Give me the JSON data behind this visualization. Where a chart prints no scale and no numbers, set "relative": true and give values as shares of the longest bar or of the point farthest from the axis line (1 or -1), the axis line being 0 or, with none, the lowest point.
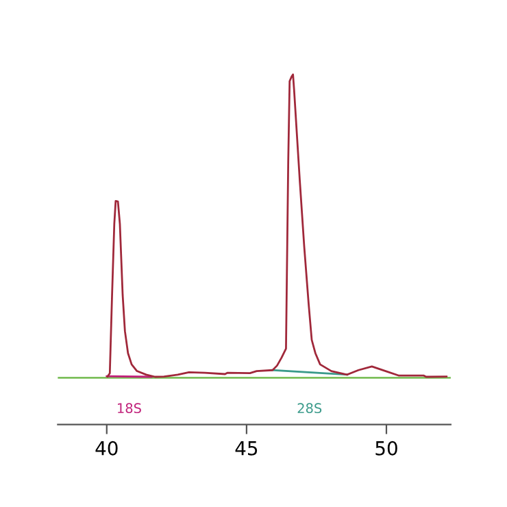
{
  "chart_data": {
    "type": "line",
    "relative": true,
    "xlim": [
      38.25,
      52.3
    ],
    "xticks": [
      40,
      45,
      50
    ],
    "tick_labels": "x",
    "grid": false,
    "legend": false,
    "marker": "none",
    "line_style": "solid",
    "series": [
      {
        "color": "#7cbf5a",
        "x": [
          38.25,
          52.3
        ],
        "values": [
          0,
          0
        ]
      },
      {
        "name": "18S",
        "color": "#c0207a",
        "x": [
          40.0,
          41.6
        ],
        "values": [
          0.005,
          0.003
        ]
      },
      {
        "name": "28S",
        "color": "#3a9a8a",
        "x": [
          45.9,
          48.6
        ],
        "values": [
          0.025,
          0.01
        ]
      },
      {
        "color": "#a0283a",
        "x": [
          40.03,
          40.11,
          40.19,
          40.27,
          40.32,
          40.4,
          40.47,
          40.57,
          40.65,
          40.76,
          40.89,
          41.08,
          41.41,
          41.73,
          42.05,
          42.54,
          42.94,
          43.51,
          44.23,
          44.31,
          45.12,
          45.36,
          45.93,
          46.09,
          46.25,
          46.41,
          46.49,
          46.54,
          46.61,
          46.66,
          46.7,
          46.9,
          47.06,
          47.22,
          47.33,
          47.46,
          47.63,
          48.03,
          48.59,
          49.0,
          49.48,
          49.97,
          50.45,
          51.34,
          51.42,
          52.15
        ],
        "values": [
          0.004,
          0.015,
          0.272,
          0.507,
          0.583,
          0.581,
          0.507,
          0.272,
          0.154,
          0.081,
          0.044,
          0.022,
          0.01,
          0.003,
          0.004,
          0.01,
          0.018,
          0.016,
          0.012,
          0.016,
          0.015,
          0.022,
          0.025,
          0.04,
          0.066,
          0.096,
          0.713,
          0.978,
          0.993,
          1.0,
          0.949,
          0.654,
          0.434,
          0.243,
          0.125,
          0.081,
          0.044,
          0.022,
          0.01,
          0.025,
          0.037,
          0.022,
          0.007,
          0.007,
          0.003,
          0.004
        ]
      }
    ]
  }
}
